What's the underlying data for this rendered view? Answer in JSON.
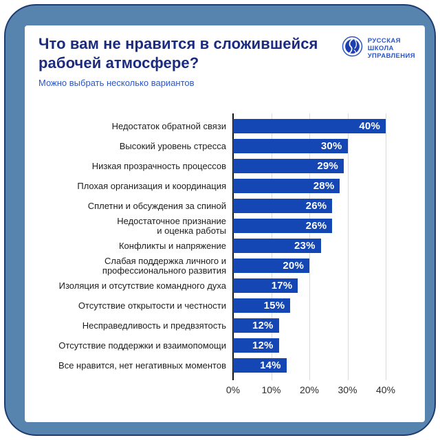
{
  "header": {
    "title": "Что вам не нравится в сложившейся рабочей атмосфере?",
    "subtitle": "Можно выбрать несколько вариантов"
  },
  "logo": {
    "lines": [
      "РУССКАЯ",
      "ШКОЛА",
      "УПРАВЛЕНИЯ"
    ]
  },
  "colors": {
    "frame": "#5684AE",
    "frame_outline": "#1D3A6F",
    "card": "#FFFFFF",
    "title": "#1B2B80",
    "subtitle": "#2B55C4",
    "bar": "#1547B4",
    "bar_value_text": "#FFFFFF",
    "category_text": "#1C1C1C",
    "grid": "#DBDBDB",
    "axis": "#111111",
    "tick_text": "#2B2B2B",
    "logo": "#2B55C4"
  },
  "chart_data": {
    "type": "bar",
    "orientation": "horizontal",
    "title": "Что вам не нравится в сложившейся рабочей атмосфере?",
    "subtitle": "Можно выбрать несколько вариантов",
    "categories": [
      "Недостаток обратной связи",
      "Высокий уровень стресса",
      "Низкая прозрачность процессов",
      "Плохая организация и координация",
      "Сплетни и обсуждения за спиной",
      "Недостаточное признание\nи оценка работы",
      "Конфликты и напряжение",
      "Слабая поддержка личного и\nпрофессионального развития",
      "Изоляция и отсутствие командного духа",
      "Отсутствие открытости и честности",
      "Несправедливость и предвзятость",
      "Отсутствие поддержки и взаимопомощи",
      "Все нравится, нет негативных моментов"
    ],
    "values": [
      40,
      30,
      29,
      28,
      26,
      26,
      23,
      20,
      17,
      15,
      12,
      12,
      14
    ],
    "value_labels": [
      "40%",
      "30%",
      "29%",
      "28%",
      "26%",
      "26%",
      "23%",
      "20%",
      "17%",
      "15%",
      "12%",
      "12%",
      "14%"
    ],
    "unit": "%",
    "x_tick_labels": [
      "0%",
      "10%",
      "20%",
      "30%",
      "40%"
    ],
    "x_tick_values": [
      0,
      10,
      20,
      30,
      40
    ],
    "xlim": [
      0,
      45
    ],
    "grid": true,
    "legend": false,
    "bar_color": "#1547B4"
  }
}
